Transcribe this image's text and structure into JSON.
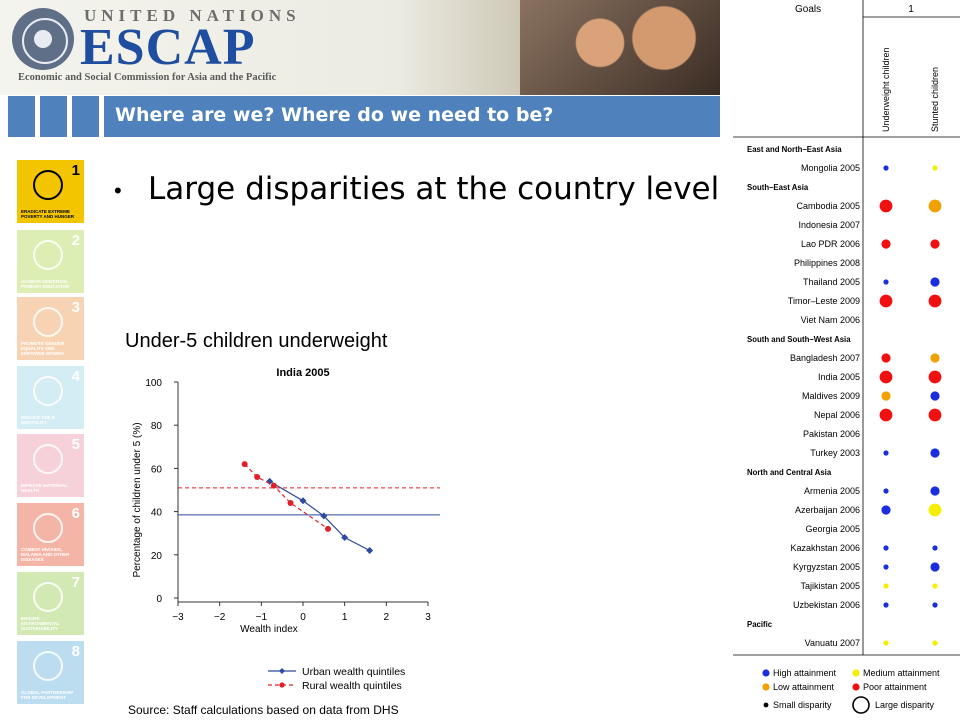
{
  "header": {
    "org_top": "UNITED NATIONS",
    "org_name": "ESCAP",
    "org_sub": "Economic and Social Commission for Asia and the Pacific"
  },
  "title": "Where are we? Where do we need to be?",
  "mdg_icons": [
    {
      "num": "1",
      "caption": "ERADICATE EXTREME POVERTY AND HUNGER",
      "color": "#f2c500"
    },
    {
      "num": "2",
      "caption": "ACHIEVE UNIVERSAL PRIMARY EDUCATION",
      "color": "#dceeb3"
    },
    {
      "num": "3",
      "caption": "PROMOTE GENDER EQUALITY AND EMPOWER WOMEN",
      "color": "#f8d3b3"
    },
    {
      "num": "4",
      "caption": "REDUCE CHILD MORTALITY",
      "color": "#d4ecf4"
    },
    {
      "num": "5",
      "caption": "IMPROVE MATERNAL HEALTH",
      "color": "#f6d1d9"
    },
    {
      "num": "6",
      "caption": "COMBAT HIV/AIDS, MALARIA AND OTHER DISEASES",
      "color": "#f4b5a6"
    },
    {
      "num": "7",
      "caption": "ENSURE ENVIRONMENTAL SUSTAINABILITY",
      "color": "#d2e9b3"
    },
    {
      "num": "8",
      "caption": "GLOBAL PARTNERSHIP FOR DEVELOPMENT",
      "color": "#bcdcf0"
    }
  ],
  "bullet": "Large disparities at the country level",
  "chart_heading": "Under-5 children underweight",
  "source": "Source: Staff calculations based on data from DHS",
  "chart_data": [
    {
      "type": "line",
      "title": "India 2005",
      "xlabel": "Wealth index",
      "ylabel": "Percentage of children under 5 (%)",
      "xlim": [
        -3,
        3
      ],
      "ylim": [
        0,
        100
      ],
      "xticks": [
        "−3",
        "−2",
        "−1",
        "0",
        "1",
        "2",
        "3"
      ],
      "yticks": [
        "0",
        "20",
        "40",
        "60",
        "80",
        "100"
      ],
      "series": [
        {
          "name": "Urban wealth quintiles",
          "color": "#2c4aa0",
          "x": [
            -0.8,
            0.0,
            0.5,
            1.0,
            1.6
          ],
          "y": [
            54,
            45,
            38,
            28,
            22
          ],
          "hline": 38.5
        },
        {
          "name": "Rural wealth quintiles",
          "color": "#e0202a",
          "x": [
            -1.4,
            -1.1,
            -0.7,
            -0.3,
            0.6
          ],
          "y": [
            62,
            56,
            52,
            44,
            32
          ],
          "hline": 51
        }
      ]
    },
    {
      "type": "table",
      "goals_label": "Goals",
      "goal_number": "1",
      "columns": [
        "Underweight children",
        "Stunted children"
      ],
      "groups": [
        {
          "name": "East and North–East Asia",
          "rows": [
            {
              "country": "Mongolia 2005",
              "cells": [
                [
                  "high",
                  "small"
                ],
                [
                  "medium",
                  "small"
                ]
              ]
            }
          ]
        },
        {
          "name": "South–East Asia",
          "rows": [
            {
              "country": "Cambodia 2005",
              "cells": [
                [
                  "poor",
                  "large"
                ],
                [
                  "low",
                  "large"
                ]
              ]
            },
            {
              "country": "Indonesia 2007",
              "cells": [
                null,
                null
              ]
            },
            {
              "country": "Lao PDR 2006",
              "cells": [
                [
                  "poor",
                  "medium"
                ],
                [
                  "poor",
                  "medium"
                ]
              ]
            },
            {
              "country": "Philippines 2008",
              "cells": [
                null,
                null
              ]
            },
            {
              "country": "Thailand 2005",
              "cells": [
                [
                  "high",
                  "small"
                ],
                [
                  "high",
                  "medium"
                ]
              ]
            },
            {
              "country": "Timor–Leste 2009",
              "cells": [
                [
                  "poor",
                  "large"
                ],
                [
                  "poor",
                  "large"
                ]
              ]
            },
            {
              "country": "Viet Nam 2006",
              "cells": [
                null,
                null
              ]
            }
          ]
        },
        {
          "name": "South and South–West Asia",
          "rows": [
            {
              "country": "Bangladesh 2007",
              "cells": [
                [
                  "poor",
                  "medium"
                ],
                [
                  "low",
                  "medium"
                ]
              ]
            },
            {
              "country": "India 2005",
              "cells": [
                [
                  "poor",
                  "large"
                ],
                [
                  "poor",
                  "large"
                ]
              ]
            },
            {
              "country": "Maldives 2009",
              "cells": [
                [
                  "low",
                  "medium"
                ],
                [
                  "high",
                  "medium"
                ]
              ]
            },
            {
              "country": "Nepal 2006",
              "cells": [
                [
                  "poor",
                  "large"
                ],
                [
                  "poor",
                  "large"
                ]
              ]
            },
            {
              "country": "Pakistan 2006",
              "cells": [
                null,
                null
              ]
            },
            {
              "country": "Turkey 2003",
              "cells": [
                [
                  "high",
                  "small"
                ],
                [
                  "high",
                  "medium"
                ]
              ]
            }
          ]
        },
        {
          "name": "North and Central Asia",
          "rows": [
            {
              "country": "Armenia 2005",
              "cells": [
                [
                  "high",
                  "small"
                ],
                [
                  "high",
                  "medium"
                ]
              ]
            },
            {
              "country": "Azerbaijan 2006",
              "cells": [
                [
                  "high",
                  "medium"
                ],
                [
                  "medium",
                  "large"
                ]
              ]
            },
            {
              "country": "Georgia 2005",
              "cells": [
                null,
                null
              ]
            },
            {
              "country": "Kazakhstan 2006",
              "cells": [
                [
                  "high",
                  "small"
                ],
                [
                  "high",
                  "small"
                ]
              ]
            },
            {
              "country": "Kyrgyzstan 2005",
              "cells": [
                [
                  "high",
                  "small"
                ],
                [
                  "high",
                  "medium"
                ]
              ]
            },
            {
              "country": "Tajikistan 2005",
              "cells": [
                [
                  "medium",
                  "small"
                ],
                [
                  "medium",
                  "small"
                ]
              ]
            },
            {
              "country": "Uzbekistan 2006",
              "cells": [
                [
                  "high",
                  "small"
                ],
                [
                  "high",
                  "small"
                ]
              ]
            }
          ]
        },
        {
          "name": "Pacific",
          "rows": [
            {
              "country": "Vanuatu 2007",
              "cells": [
                [
                  "medium",
                  "small"
                ],
                [
                  "medium",
                  "small"
                ]
              ]
            }
          ]
        }
      ],
      "legend": {
        "attainment": [
          {
            "key": "high",
            "label": "High attainment",
            "color": "#1a2ee0"
          },
          {
            "key": "medium",
            "label": "Medium attainment",
            "color": "#f5ee00"
          },
          {
            "key": "low",
            "label": "Low attainment",
            "color": "#f0a000"
          },
          {
            "key": "poor",
            "label": "Poor attainment",
            "color": "#f01010"
          }
        ],
        "disparity": [
          {
            "key": "small",
            "label": "Small disparity"
          },
          {
            "key": "large",
            "label": "Large disparity"
          }
        ]
      }
    }
  ]
}
